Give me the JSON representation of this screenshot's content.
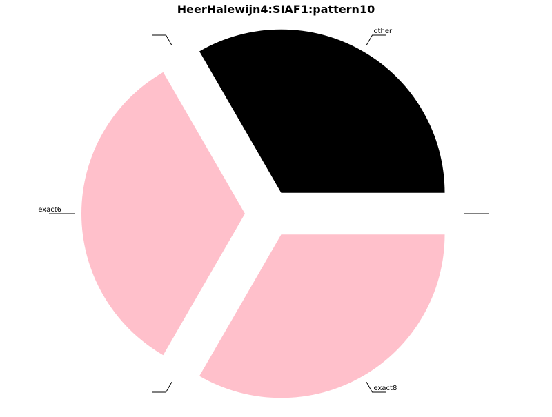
{
  "chart_data": {
    "type": "pie",
    "title": "HeerHalewijn4:SIAF1:pattern10",
    "slices": [
      {
        "label": "other",
        "value": 1,
        "color": "#000000"
      },
      {
        "label": "",
        "value": 0,
        "color": "#ffc0cb"
      },
      {
        "label": "exact6",
        "value": 1,
        "color": "#ffc0cb"
      },
      {
        "label": "",
        "value": 0,
        "color": "#ffc0cb"
      },
      {
        "label": "exact8",
        "value": 1,
        "color": "#ffc0cb"
      },
      {
        "label": "",
        "value": 0,
        "color": "#ffc0cb"
      }
    ],
    "exploded": true,
    "legend": "none"
  }
}
